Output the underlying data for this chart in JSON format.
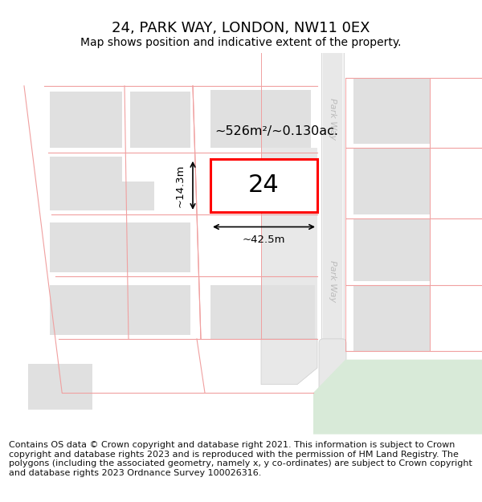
{
  "title": "24, PARK WAY, LONDON, NW11 0EX",
  "subtitle": "Map shows position and indicative extent of the property.",
  "footer": "Contains OS data © Crown copyright and database right 2021. This information is subject to Crown copyright and database rights 2023 and is reproduced with the permission of HM Land Registry. The polygons (including the associated geometry, namely x, y co-ordinates) are subject to Crown copyright and database rights 2023 Ordnance Survey 100026316.",
  "area_label": "~526m²/~0.130ac.",
  "width_label": "~42.5m",
  "height_label": "~14.3m",
  "plot_number": "24",
  "map_bg": "#ffffff",
  "building_fill": "#e0e0e0",
  "building_stroke": "#f0a0a0",
  "plot_fill": "#ffffff",
  "plot_stroke": "#ff0000",
  "road_fill": "#ffffff",
  "road_stripe_fill": "#d8d8d8",
  "road_label_color": "#bbbbbb",
  "green_fill": "#d8ead8",
  "pink_line": "#f0a0a0",
  "title_fontsize": 13,
  "subtitle_fontsize": 10,
  "footer_fontsize": 8
}
